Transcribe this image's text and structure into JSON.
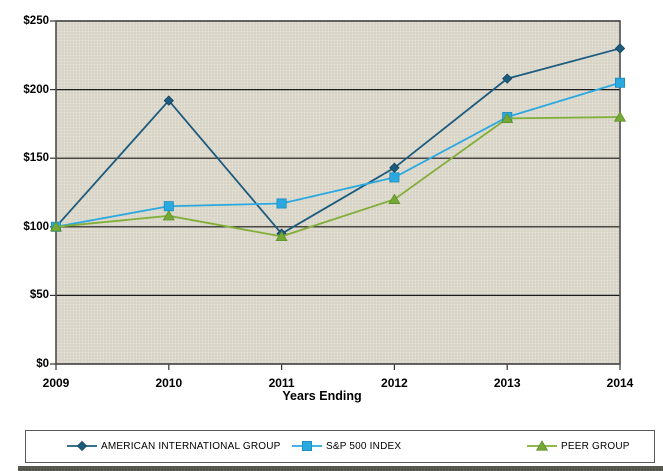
{
  "chart_data": {
    "type": "line",
    "title": "",
    "xlabel": "Years Ending",
    "ylabel": "",
    "x": [
      2009,
      2010,
      2011,
      2012,
      2013,
      2014
    ],
    "x_tick_labels": [
      "2009",
      "2010",
      "2011",
      "2012",
      "2013",
      "2014"
    ],
    "y_tick_labels": [
      "$0",
      "$50",
      "$100",
      "$150",
      "$200",
      "$250"
    ],
    "y_ticks": [
      0,
      50,
      100,
      150,
      200,
      250
    ],
    "ylim": [
      0,
      250
    ],
    "grid": "horizontal-only",
    "legend_position": "bottom-boxed",
    "series": [
      {
        "name": "AMERICAN INTERNATIONAL GROUP",
        "marker": "diamond",
        "color": "#1c5b7e",
        "marker_fill": "#1c5b7e",
        "marker_edge": "#14455f",
        "values": [
          100,
          192,
          95,
          143,
          208,
          230
        ]
      },
      {
        "name": "S&P 500 INDEX",
        "marker": "square",
        "color": "#2aa9e0",
        "marker_fill": "#2aa9e0",
        "marker_edge": "#1b8cc0",
        "values": [
          100,
          115,
          117,
          136,
          180,
          205
        ]
      },
      {
        "name": "PEER GROUP",
        "marker": "triangle",
        "color": "#82ae3a",
        "marker_fill": "#74a936",
        "marker_edge": "#5d8f2a",
        "values": [
          100,
          108,
          93,
          120,
          179,
          180
        ]
      }
    ],
    "colors": {
      "plot_bg": "#d8d4c7",
      "plot_bg_dot": "#e9e6db",
      "gridline": "#1a1a1a",
      "plot_border": "#4d4d4d",
      "tick": "#333333"
    }
  }
}
